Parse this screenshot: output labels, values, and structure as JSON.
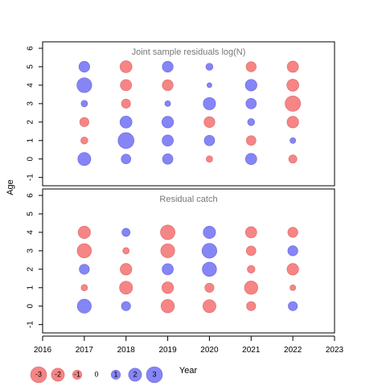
{
  "chart_data": [
    {
      "type": "scatter",
      "title": "Joint sample residuals log(N)",
      "ylabel": "Age",
      "ylim": [
        -1,
        6
      ],
      "x": [
        2017,
        2018,
        2019,
        2020,
        2021,
        2022
      ],
      "points": [
        {
          "year": 2017,
          "age": 0,
          "residual": 2.0
        },
        {
          "year": 2017,
          "age": 1,
          "residual": -0.6
        },
        {
          "year": 2017,
          "age": 2,
          "residual": -1.0
        },
        {
          "year": 2017,
          "age": 3,
          "residual": 0.5
        },
        {
          "year": 2017,
          "age": 4,
          "residual": 2.6
        },
        {
          "year": 2017,
          "age": 5,
          "residual": 1.4
        },
        {
          "year": 2018,
          "age": 0,
          "residual": 1.1
        },
        {
          "year": 2018,
          "age": 1,
          "residual": 3.0
        },
        {
          "year": 2018,
          "age": 2,
          "residual": 1.7
        },
        {
          "year": 2018,
          "age": 3,
          "residual": -1.0
        },
        {
          "year": 2018,
          "age": 4,
          "residual": -1.5
        },
        {
          "year": 2018,
          "age": 5,
          "residual": -1.7
        },
        {
          "year": 2019,
          "age": 0,
          "residual": 1.3
        },
        {
          "year": 2019,
          "age": 1,
          "residual": 1.5
        },
        {
          "year": 2019,
          "age": 2,
          "residual": 1.6
        },
        {
          "year": 2019,
          "age": 3,
          "residual": 0.4
        },
        {
          "year": 2019,
          "age": 4,
          "residual": -1.4
        },
        {
          "year": 2019,
          "age": 5,
          "residual": 1.4
        },
        {
          "year": 2020,
          "age": 0,
          "residual": -0.5
        },
        {
          "year": 2020,
          "age": 1,
          "residual": 1.3
        },
        {
          "year": 2020,
          "age": 2,
          "residual": -1.4
        },
        {
          "year": 2020,
          "age": 3,
          "residual": 1.8
        },
        {
          "year": 2020,
          "age": 4,
          "residual": 0.3
        },
        {
          "year": 2020,
          "age": 5,
          "residual": 0.6
        },
        {
          "year": 2021,
          "age": 0,
          "residual": 1.5
        },
        {
          "year": 2021,
          "age": 1,
          "residual": -1.1
        },
        {
          "year": 2021,
          "age": 2,
          "residual": 0.6
        },
        {
          "year": 2021,
          "age": 3,
          "residual": 1.3
        },
        {
          "year": 2021,
          "age": 4,
          "residual": 1.6
        },
        {
          "year": 2021,
          "age": 5,
          "residual": -1.2
        },
        {
          "year": 2022,
          "age": 0,
          "residual": -0.8
        },
        {
          "year": 2022,
          "age": 1,
          "residual": 0.4
        },
        {
          "year": 2022,
          "age": 2,
          "residual": -1.6
        },
        {
          "year": 2022,
          "age": 3,
          "residual": -2.8
        },
        {
          "year": 2022,
          "age": 4,
          "residual": -1.7
        },
        {
          "year": 2022,
          "age": 5,
          "residual": -1.5
        }
      ]
    },
    {
      "type": "scatter",
      "title": "Residual catch",
      "xlabel": "Year",
      "ylim": [
        -1,
        6
      ],
      "xlim": [
        2016,
        2023
      ],
      "x": [
        2017,
        2018,
        2019,
        2020,
        2021,
        2022
      ],
      "points": [
        {
          "year": 2017,
          "age": 0,
          "residual": 2.3
        },
        {
          "year": 2017,
          "age": 1,
          "residual": -0.5
        },
        {
          "year": 2017,
          "age": 2,
          "residual": 1.2
        },
        {
          "year": 2017,
          "age": 3,
          "residual": -2.4
        },
        {
          "year": 2017,
          "age": 4,
          "residual": -1.8
        },
        {
          "year": 2018,
          "age": 0,
          "residual": 1.0
        },
        {
          "year": 2018,
          "age": 1,
          "residual": -2.0
        },
        {
          "year": 2018,
          "age": 2,
          "residual": -1.6
        },
        {
          "year": 2018,
          "age": 3,
          "residual": -0.5
        },
        {
          "year": 2018,
          "age": 4,
          "residual": 0.8
        },
        {
          "year": 2019,
          "age": 0,
          "residual": -2.1
        },
        {
          "year": 2019,
          "age": 1,
          "residual": -1.6
        },
        {
          "year": 2019,
          "age": 2,
          "residual": 1.5
        },
        {
          "year": 2019,
          "age": 3,
          "residual": -2.3
        },
        {
          "year": 2019,
          "age": 4,
          "residual": -2.5
        },
        {
          "year": 2020,
          "age": 0,
          "residual": -2.0
        },
        {
          "year": 2020,
          "age": 1,
          "residual": -1.0
        },
        {
          "year": 2020,
          "age": 2,
          "residual": 2.4
        },
        {
          "year": 2020,
          "age": 3,
          "residual": 2.6
        },
        {
          "year": 2020,
          "age": 4,
          "residual": 1.8
        },
        {
          "year": 2021,
          "age": 0,
          "residual": -1.0
        },
        {
          "year": 2021,
          "age": 1,
          "residual": -2.1
        },
        {
          "year": 2021,
          "age": 2,
          "residual": -0.7
        },
        {
          "year": 2021,
          "age": 3,
          "residual": -1.1
        },
        {
          "year": 2021,
          "age": 4,
          "residual": -1.5
        },
        {
          "year": 2022,
          "age": 0,
          "residual": 1.0
        },
        {
          "year": 2022,
          "age": 1,
          "residual": -0.4
        },
        {
          "year": 2022,
          "age": 2,
          "residual": -1.6
        },
        {
          "year": 2022,
          "age": 3,
          "residual": 1.2
        },
        {
          "year": 2022,
          "age": 4,
          "residual": -1.2
        }
      ]
    }
  ],
  "y_ticks": [
    "-1",
    "0",
    "1",
    "2",
    "3",
    "4",
    "5",
    "6"
  ],
  "x_ticks": [
    "2016",
    "2017",
    "2018",
    "2019",
    "2020",
    "2021",
    "2022",
    "2023"
  ],
  "legend": {
    "items": [
      {
        "label": "-3",
        "value": -3
      },
      {
        "label": "-2",
        "value": -2
      },
      {
        "label": "-1",
        "value": -1
      },
      {
        "label": "0",
        "value": 0
      },
      {
        "label": "1",
        "value": 1
      },
      {
        "label": "2",
        "value": 2
      },
      {
        "label": "3",
        "value": 3
      }
    ]
  },
  "colors": {
    "positive": "#3a3af0",
    "negative": "#f03a3a",
    "title_text": "#777777",
    "axis": "#000000"
  }
}
